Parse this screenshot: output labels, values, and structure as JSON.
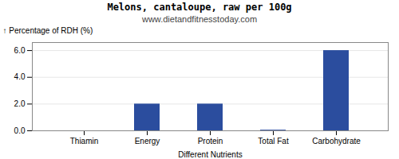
{
  "chart_data": {
    "type": "bar",
    "title": "Melons, cantaloupe, raw per 100g",
    "subtitle": "www.dietandfitnesstoday.com",
    "xlabel": "Different Nutrients",
    "ylabel": "Percentage of RDH (%)",
    "categories": [
      "Thiamin",
      "Energy",
      "Protein",
      "Total Fat",
      "Carbohydrate"
    ],
    "values": [
      0.0,
      2.0,
      2.0,
      0.05,
      6.0
    ],
    "color": "#2b4d9e",
    "ylim": [
      0,
      6.6
    ],
    "yticks": [
      0,
      2,
      4,
      6
    ],
    "grid": true
  }
}
